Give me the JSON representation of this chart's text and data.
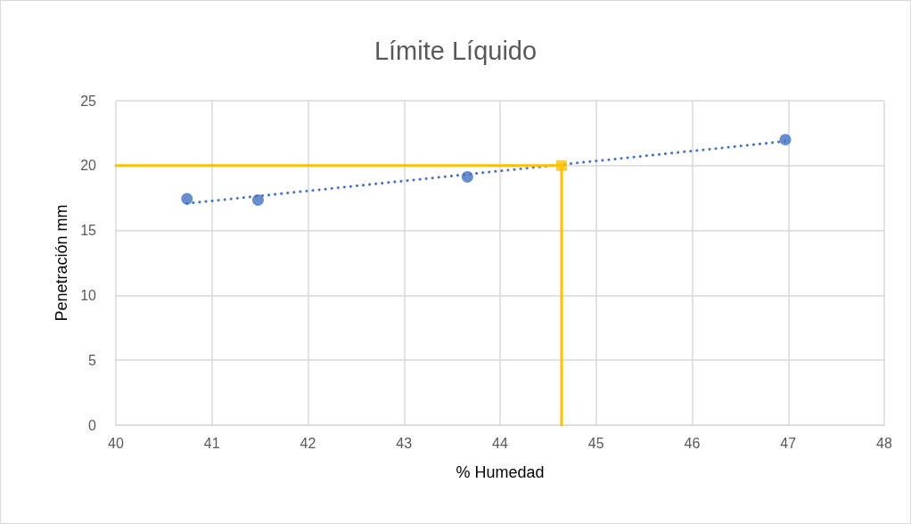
{
  "chart_data": {
    "type": "scatter",
    "title": "Límite Líquido",
    "xlabel": "% Humedad",
    "ylabel": "Penetración mm",
    "xlim": [
      40,
      48
    ],
    "xticks": [
      40,
      41,
      42,
      43,
      44,
      45,
      46,
      47,
      48
    ],
    "ylim": [
      0,
      25
    ],
    "yticks": [
      0,
      5,
      10,
      15,
      20,
      25
    ],
    "grid": true,
    "series": [
      {
        "color": "#4472c4",
        "marker": "circle",
        "x": [
          40.74,
          41.48,
          43.66,
          46.97
        ],
        "values": [
          17.44,
          17.35,
          19.13,
          22.0
        ]
      },
      {
        "type": "line",
        "color": "#4472c4",
        "marker": "none",
        "line_style": "dotted",
        "x": [
          40.74,
          46.97
        ],
        "values": [
          17.08,
          21.87
        ]
      },
      {
        "type": "line",
        "color": "#ffc000",
        "marker": "none",
        "line_style": "solid",
        "x": [
          40,
          44.64,
          44.64
        ],
        "values": [
          20,
          20,
          0
        ]
      },
      {
        "type": "scatter",
        "color": "#ffc000",
        "marker": "square",
        "x": [
          44.64
        ],
        "values": [
          20
        ]
      }
    ]
  }
}
